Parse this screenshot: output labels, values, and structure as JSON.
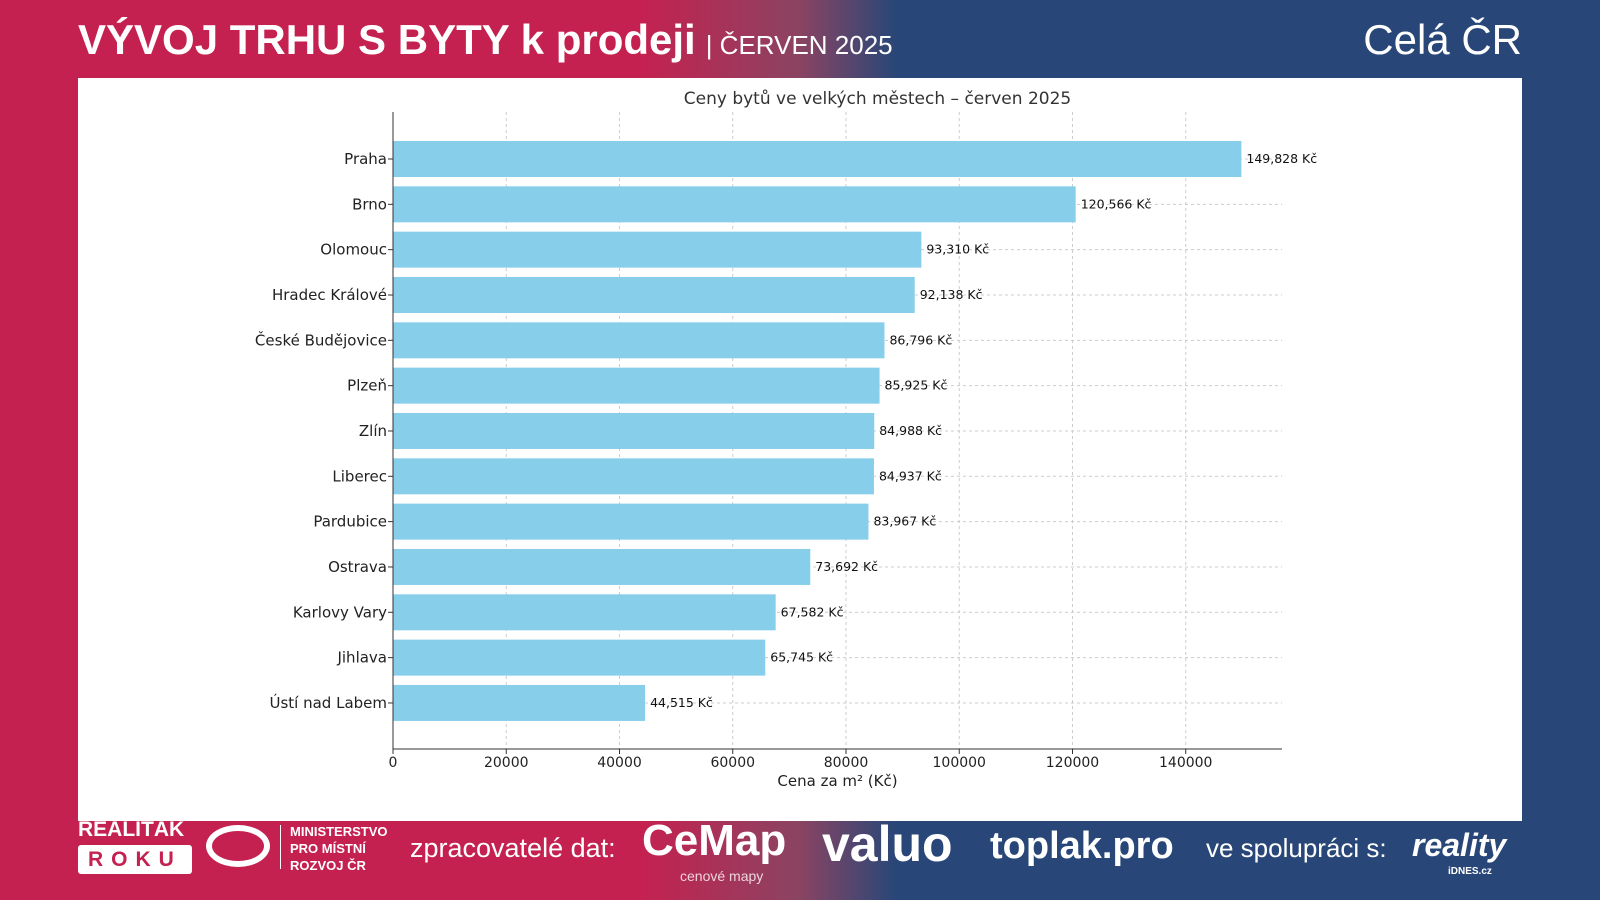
{
  "header": {
    "title": "VÝVOJ TRHU S BYTY k prodeji",
    "subtitle": "| ČERVEN 2025",
    "region": "Celá ČR"
  },
  "colors": {
    "bar": "#87ceeb",
    "brand_red": "#c52150",
    "brand_blue": "#284778"
  },
  "chart_data": {
    "type": "bar",
    "orientation": "horizontal",
    "title": "Ceny bytů ve velkých městech – červen 2025",
    "xlabel": "Cena za m² (Kč)",
    "ylabel": "",
    "xlim": [
      0,
      157000
    ],
    "xticks": [
      0,
      20000,
      40000,
      60000,
      80000,
      100000,
      120000,
      140000
    ],
    "grid": true,
    "categories": [
      "Praha",
      "Brno",
      "Olomouc",
      "Hradec Králové",
      "České Budějovice",
      "Plzeň",
      "Zlín",
      "Liberec",
      "Pardubice",
      "Ostrava",
      "Karlovy Vary",
      "Jihlava",
      "Ústí nad Labem"
    ],
    "values": [
      149828,
      120566,
      93310,
      92138,
      86796,
      85925,
      84988,
      84937,
      83967,
      73692,
      67582,
      65745,
      44515
    ],
    "data_labels": [
      "149,828 Kč",
      "120,566 Kč",
      "93,310 Kč",
      "92,138 Kč",
      "86,796 Kč",
      "85,925 Kč",
      "84,988 Kč",
      "84,937 Kč",
      "83,967 Kč",
      "73,692 Kč",
      "67,582 Kč",
      "65,745 Kč",
      "44,515 Kč"
    ]
  },
  "footer": {
    "realitak": "REALIŤÁK",
    "roku": "ROKU",
    "ministry": [
      "MINISTERSTVO",
      "PRO MÍSTNÍ",
      "ROZVOJ ČR"
    ],
    "processors_label": "zpracovatelé dat:",
    "cemap": "CeMap",
    "cemap_sub": "cenové mapy",
    "valuo": "valuo",
    "toplak": "toplak.pro",
    "cooperation_label": "ve spolupráci s:",
    "reality": "reality",
    "reality_sub": "iDNES.cz"
  }
}
